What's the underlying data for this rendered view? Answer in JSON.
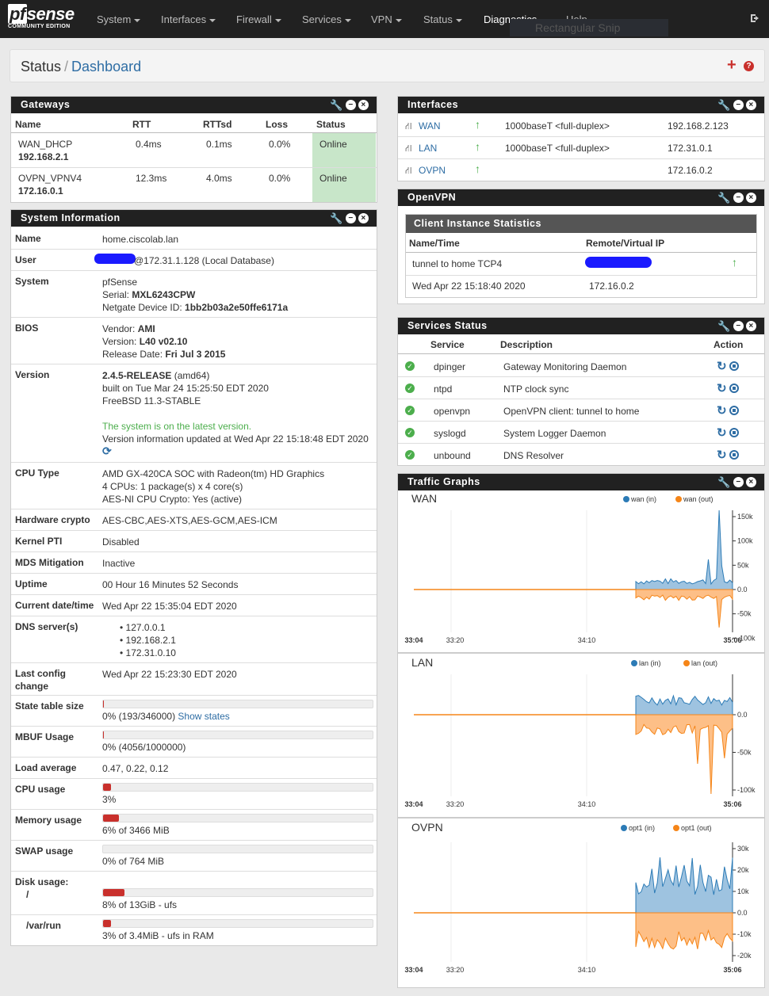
{
  "nav": {
    "brand": "pfsense",
    "brand_sub": "COMMUNITY EDITION",
    "menu": [
      "System",
      "Interfaces",
      "Firewall",
      "Services",
      "VPN",
      "Status",
      "Diagnostics",
      "Help"
    ],
    "snip": "Rectangular Snip"
  },
  "crumb": {
    "status": "Status",
    "slash": "/",
    "dashboard": "Dashboard"
  },
  "gateways": {
    "title": "Gateways",
    "headers": [
      "Name",
      "RTT",
      "RTTsd",
      "Loss",
      "Status"
    ],
    "rows": [
      {
        "name": "WAN_DHCP",
        "ip": "192.168.2.1",
        "rtt": "0.4ms",
        "rttsd": "0.1ms",
        "loss": "0.0%",
        "status": "Online"
      },
      {
        "name": "OVPN_VPNV4",
        "ip": "172.16.0.1",
        "rtt": "12.3ms",
        "rttsd": "4.0ms",
        "loss": "0.0%",
        "status": "Online"
      }
    ]
  },
  "sysinfo": {
    "title": "System Information",
    "name_label": "Name",
    "name": "home.ciscolab.lan",
    "user_label": "User",
    "user": "@172.31.1.128 (Local Database)",
    "system_label": "System",
    "system": "pfSense",
    "serial_label": "Serial: ",
    "serial": "MXL6243CPW",
    "device_label": "Netgate Device ID: ",
    "device": "1bb2b03a2e50ffe6171a",
    "bios_label": "BIOS",
    "vendor_label": "Vendor: ",
    "vendor": "AMI",
    "bver_label": "Version: ",
    "bver": "L40 v02.10",
    "rel_label": "Release Date: ",
    "rel": "Fri Jul 3 2015",
    "version_label": "Version",
    "version": "2.4.5-RELEASE",
    "arch": " (amd64)",
    "built": "built on Tue Mar 24 15:25:50 EDT 2020",
    "freebsd": "FreeBSD 11.3-STABLE",
    "latest": "The system is on the latest version.",
    "updated": "Version information updated at Wed Apr 22 15:18:48 EDT 2020",
    "cpu_label": "CPU Type",
    "cpu1": "AMD GX-420CA SOC with Radeon(tm) HD Graphics",
    "cpu2": "4 CPUs: 1 package(s) x 4 core(s)",
    "cpu3": "AES-NI CPU Crypto: Yes (active)",
    "hw_label": "Hardware crypto",
    "hw": "AES-CBC,AES-XTS,AES-GCM,AES-ICM",
    "pti_label": "Kernel PTI",
    "pti": "Disabled",
    "mds_label": "MDS Mitigation",
    "mds": "Inactive",
    "uptime_label": "Uptime",
    "uptime": "00 Hour 16 Minutes 52 Seconds",
    "date_label": "Current date/time",
    "date": "Wed Apr 22 15:35:04 EDT 2020",
    "dns_label": "DNS server(s)",
    "dns": [
      "127.0.0.1",
      "192.168.2.1",
      "172.31.0.10"
    ],
    "lastcfg_label1": "Last config",
    "lastcfg_label2": "change",
    "lastcfg": "Wed Apr 22 15:23:30 EDT 2020",
    "state_label": "State table size",
    "state": "0% (193/346000)",
    "show_states": "Show states",
    "state_pct": 0.056,
    "mbuf_label": "MBUF Usage",
    "mbuf": "0% (4056/1000000)",
    "mbuf_pct": 0.4,
    "load_label": "Load average",
    "load": "0.47, 0.22, 0.12",
    "cpuu_label": "CPU usage",
    "cpuu": "3%",
    "cpuu_pct": 3,
    "mem_label": "Memory usage",
    "mem": "6% of 3466 MiB",
    "mem_pct": 6,
    "swap_label": "SWAP usage",
    "swap": "0% of 764 MiB",
    "swap_pct": 0,
    "disk_label": "Disk usage:",
    "disk_root_label": "/",
    "disk_root": "8% of 13GiB - ufs",
    "disk_root_pct": 8,
    "disk_var_label": "/var/run",
    "disk_var": "3% of 3.4MiB - ufs in RAM",
    "disk_var_pct": 3
  },
  "interfaces": {
    "title": "Interfaces",
    "rows": [
      {
        "name": "WAN",
        "media": "1000baseT <full-duplex>",
        "ip": "192.168.2.123"
      },
      {
        "name": "LAN",
        "media": "1000baseT <full-duplex>",
        "ip": "172.31.0.1"
      },
      {
        "name": "OVPN",
        "media": "",
        "ip": "172.16.0.2"
      }
    ]
  },
  "openvpn": {
    "title": "OpenVPN",
    "sub": "Client Instance Statistics",
    "h1": "Name/Time",
    "h2": "Remote/Virtual IP",
    "name": "tunnel to home TCP4",
    "time": "Wed Apr 22 15:18:40 2020",
    "vip": "172.16.0.2"
  },
  "services": {
    "title": "Services Status",
    "headers": [
      "Service",
      "Description",
      "Action"
    ],
    "rows": [
      {
        "name": "dpinger",
        "desc": "Gateway Monitoring Daemon"
      },
      {
        "name": "ntpd",
        "desc": "NTP clock sync"
      },
      {
        "name": "openvpn",
        "desc": "OpenVPN client: tunnel to home"
      },
      {
        "name": "syslogd",
        "desc": "System Logger Daemon"
      },
      {
        "name": "unbound",
        "desc": "DNS Resolver"
      }
    ]
  },
  "traffic": {
    "title": "Traffic Graphs",
    "colors": {
      "in": "#2c7bb6",
      "out": "#f58518"
    },
    "xticks": [
      "33:04",
      "33:20",
      "34:10",
      "35:06"
    ]
  },
  "chart_data": [
    {
      "type": "area",
      "title": "WAN",
      "series": [
        {
          "name": "wan (in)"
        },
        {
          "name": "wan (out)"
        }
      ],
      "yticks": [
        "150k",
        "100k",
        "50k",
        "0.0",
        "-50k",
        "-100k"
      ],
      "ylim": [
        -100000,
        190000
      ],
      "in": [
        0,
        0,
        0,
        0,
        0,
        0,
        0,
        0,
        0,
        0,
        0,
        0,
        0,
        0,
        0,
        0,
        0,
        0,
        0,
        0,
        0,
        0,
        0,
        0,
        0,
        0,
        0,
        0,
        0,
        0,
        0,
        0,
        0,
        0,
        0,
        0,
        0,
        0,
        0,
        0,
        0,
        0,
        0,
        0,
        0,
        0,
        0,
        0,
        0,
        0,
        0,
        0,
        0,
        0,
        0,
        0,
        0,
        0,
        0,
        0,
        0,
        0,
        0,
        0,
        0,
        0,
        0,
        0,
        0,
        0,
        0,
        0,
        0,
        0,
        0,
        0,
        0,
        0,
        0,
        0,
        0,
        0,
        0,
        0,
        0,
        0,
        0,
        0,
        0,
        0,
        0,
        0,
        0,
        0,
        0,
        0,
        0,
        0,
        0,
        0,
        0,
        0,
        0,
        0,
        0,
        0,
        0,
        0,
        0,
        0,
        0,
        0,
        0,
        0,
        0,
        0,
        0,
        0,
        0,
        0,
        0,
        0,
        0,
        0,
        0,
        0,
        0,
        0,
        0,
        0,
        0,
        0,
        0,
        0,
        0,
        0,
        0,
        0,
        0,
        0,
        0,
        0,
        0,
        0,
        0,
        0,
        0,
        0,
        0,
        0,
        0,
        0,
        0,
        0,
        0,
        0,
        0,
        0,
        0,
        0,
        0,
        0,
        0,
        0,
        0,
        0,
        0,
        0,
        0,
        0,
        0,
        0,
        0,
        0,
        0,
        0,
        0,
        0,
        0,
        0,
        0,
        0,
        0,
        0,
        0,
        0,
        0,
        0,
        0,
        0,
        0,
        0,
        0,
        0,
        0,
        0,
        0,
        0,
        0,
        0,
        0,
        0,
        0,
        0,
        0,
        0,
        0,
        0,
        0,
        0,
        0,
        0,
        0,
        0,
        0,
        0,
        0,
        0,
        0,
        0,
        0,
        0,
        0,
        0,
        0,
        0,
        0,
        0,
        0,
        0,
        0,
        0,
        0,
        0,
        0,
        0,
        0,
        0,
        0,
        0,
        0,
        0,
        0,
        0,
        0,
        0,
        0,
        0,
        0,
        0,
        0,
        0,
        0,
        0,
        0,
        0,
        0,
        0,
        0,
        0,
        0,
        0,
        0,
        0,
        0,
        0,
        0,
        0,
        0,
        0,
        0,
        0,
        0,
        0,
        0,
        0,
        0,
        0,
        0,
        0,
        0,
        0,
        0,
        0,
        0,
        0,
        0,
        0,
        0,
        0,
        0,
        0,
        0,
        0,
        0,
        0,
        0,
        0,
        0,
        30000,
        25000,
        35000,
        28000,
        33000,
        22000,
        30000,
        26000,
        34000,
        24000,
        31000,
        27000,
        36000,
        23000,
        30000,
        28000,
        33000,
        25000,
        32000,
        26000,
        34000,
        40000,
        28000,
        36000,
        30000,
        32000,
        70000,
        30000,
        28000,
        35000,
        30000,
        190000,
        90000,
        30000,
        28000,
        32000
      ],
      "out": []
    },
    {
      "type": "area",
      "title": "LAN",
      "series": [
        {
          "name": "lan (in)"
        },
        {
          "name": "lan (out)"
        }
      ],
      "yticks": [
        "0.0",
        "-50k",
        "-100k"
      ],
      "ylim": [
        -100000,
        60000
      ]
    },
    {
      "type": "area",
      "title": "OVPN",
      "series": [
        {
          "name": "opt1 (in)"
        },
        {
          "name": "opt1 (out)"
        }
      ],
      "yticks": [
        "30k",
        "20k",
        "10k",
        "0.0",
        "-10k",
        "-20k"
      ],
      "ylim": [
        -20000,
        30000
      ]
    }
  ]
}
